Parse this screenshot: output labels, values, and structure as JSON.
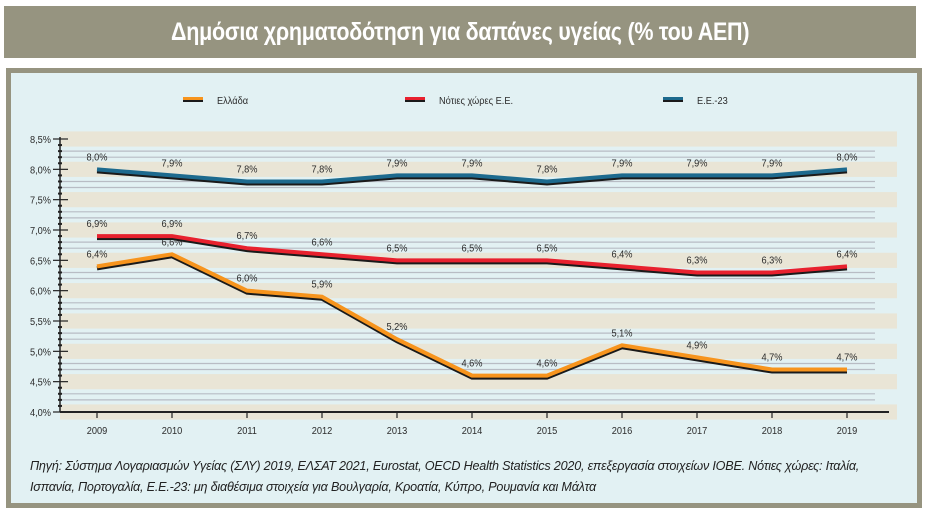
{
  "header": {
    "title": "Δημόσια χρηματοδότηση για δαπάνες υγείας (% του ΑΕΠ)"
  },
  "footer": {
    "source_note_line1": "Πηγή: Σύστημα Λογαριασμών Υγείας (ΣΛΥ) 2019, ΕΛΣΑΤ 2021, Eurostat, OECD Health Statistics 2020, επεξεργασία στοιχείων ΙΟΒΕ. Νότιες χώρες: Ιταλία,",
    "source_note_line2": "Ισπανία, Πορτογαλία, Ε.Ε.-23: μη διαθέσιμα στοιχεία για Βουλγαρία, Κροατία, Κύπρο, Ρουμανία και Μάλτα"
  },
  "colors": {
    "title_bar": "#969480",
    "panel_bg": "#e2f1f3",
    "band": "#e9e5d6",
    "gridline": "#b8bcc4"
  },
  "chart_data": {
    "type": "line",
    "title": "Δημόσια χρηματοδότηση για δαπάνες υγείας (% του ΑΕΠ)",
    "xlabel": "",
    "ylabel": "",
    "x": [
      "2009",
      "2010",
      "2011",
      "2012",
      "2013",
      "2014",
      "2015",
      "2016",
      "2017",
      "2018",
      "2019"
    ],
    "ylim": [
      4.0,
      8.5
    ],
    "yticks": [
      4.0,
      4.5,
      5.0,
      5.5,
      6.0,
      6.5,
      7.0,
      7.5,
      8.0,
      8.5
    ],
    "ytick_labels": [
      "4,0%",
      "4,5%",
      "5,0%",
      "5,5%",
      "6,0%",
      "6,5%",
      "7,0%",
      "7,5%",
      "8,0%",
      "8,5%"
    ],
    "grid": true,
    "legend_position": "top",
    "series": [
      {
        "name": "Ελλάδα",
        "color": "#f7941d",
        "values": [
          6.4,
          6.6,
          6.0,
          5.9,
          5.2,
          4.6,
          4.6,
          5.1,
          4.9,
          4.7,
          4.7
        ],
        "labels": [
          "6,4%",
          "6,6%",
          "6,0%",
          "5,9%",
          "5,2%",
          "4,6%",
          "4,6%",
          "5,1%",
          "4,9%",
          "4,7%",
          "4,7%"
        ]
      },
      {
        "name": "Νότιες χώρες Ε.Ε.",
        "color": "#e8212e",
        "values": [
          6.9,
          6.9,
          6.7,
          6.6,
          6.5,
          6.5,
          6.5,
          6.4,
          6.3,
          6.3,
          6.4
        ],
        "labels": [
          "6,9%",
          "6,9%",
          "6,7%",
          "6,6%",
          "6,5%",
          "6,5%",
          "6,5%",
          "6,4%",
          "6,3%",
          "6,3%",
          "6,4%"
        ]
      },
      {
        "name": "Ε.Ε.-23",
        "color": "#1d6a8e",
        "values": [
          8.0,
          7.9,
          7.8,
          7.8,
          7.9,
          7.9,
          7.8,
          7.9,
          7.9,
          7.9,
          8.0
        ],
        "labels": [
          "8,0%",
          "7,9%",
          "7,8%",
          "7,8%",
          "7,9%",
          "7,9%",
          "7,8%",
          "7,9%",
          "7,9%",
          "7,9%",
          "8,0%"
        ]
      }
    ]
  }
}
